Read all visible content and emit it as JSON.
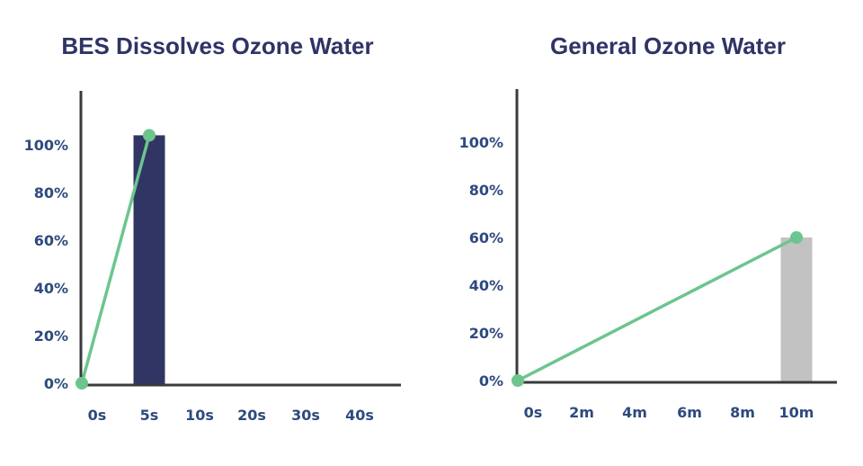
{
  "chart_data": [
    {
      "type": "bar",
      "title": "BES Dissolves Ozone Water",
      "xlabel": "",
      "ylabel": "",
      "categories": [
        "0s",
        "5s",
        "10s",
        "20s",
        "30s",
        "40s"
      ],
      "yticks": [
        "0%",
        "20%",
        "40%",
        "60%",
        "80%",
        "100%"
      ],
      "ylim": [
        0,
        120
      ],
      "bar": {
        "category": "5s",
        "value": 104
      },
      "line": {
        "points": [
          {
            "x": "0s",
            "y": 0
          },
          {
            "x": "5s",
            "y": 104
          }
        ]
      },
      "colors": {
        "bar": "#313564",
        "line": "#6cc58e",
        "axis": "#3a3a3a"
      },
      "grid": false
    },
    {
      "type": "bar",
      "title": "General Ozone Water",
      "xlabel": "",
      "ylabel": "",
      "categories": [
        "0s",
        "2m",
        "4m",
        "6m",
        "8m",
        "10m"
      ],
      "yticks": [
        "0%",
        "20%",
        "40%",
        "60%",
        "80%",
        "100%"
      ],
      "ylim": [
        0,
        120
      ],
      "bar": {
        "category": "10m",
        "value": 60
      },
      "line": {
        "points": [
          {
            "x": "0s",
            "y": 0
          },
          {
            "x": "10m",
            "y": 60
          }
        ]
      },
      "colors": {
        "bar": "#c2c2c2",
        "line": "#6cc58e",
        "axis": "#3a3a3a"
      },
      "grid": false
    }
  ]
}
